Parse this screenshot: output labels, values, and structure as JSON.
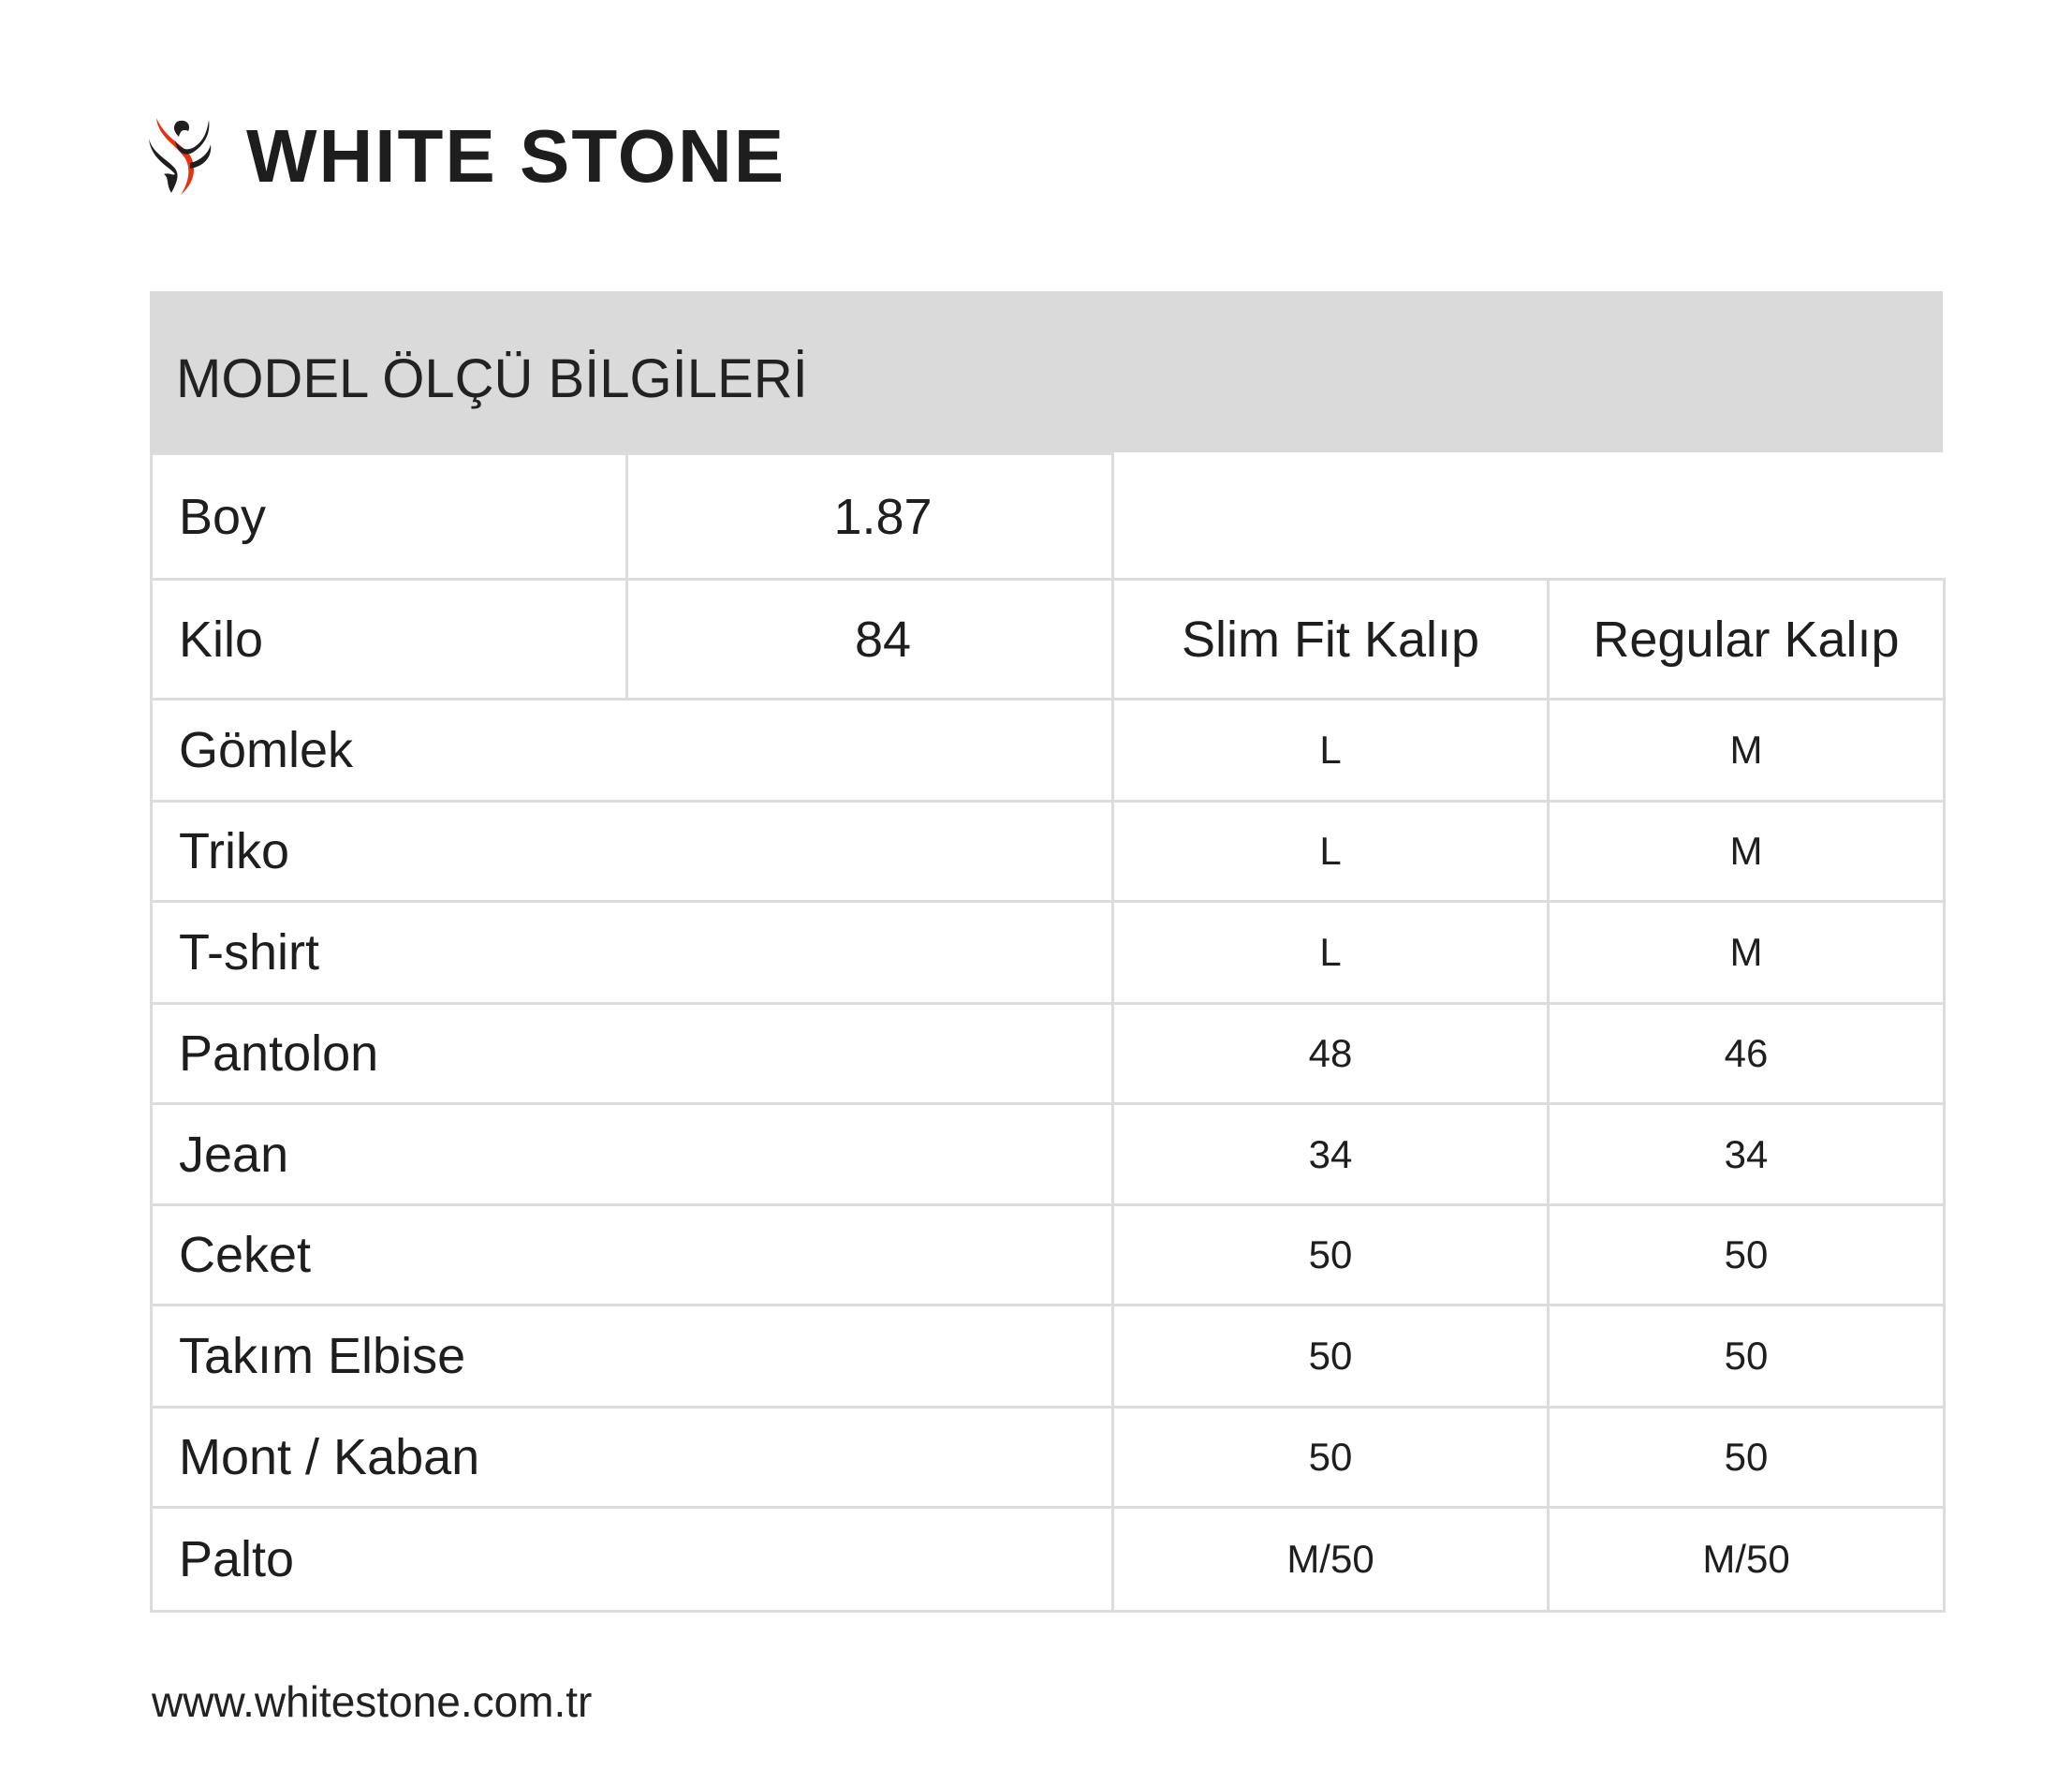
{
  "brand": {
    "name": "WHITE STONE",
    "logo_icon": "phoenix-logo-icon",
    "accent_color": "#e63312",
    "text_color": "#1e1e1e"
  },
  "title": "MODEL ÖLÇÜ BİLGİLERİ",
  "model": [
    {
      "label": "Boy",
      "value": "1.87"
    },
    {
      "label": "Kilo",
      "value": "84"
    }
  ],
  "columns": [
    "Slim Fit Kalıp",
    "Regular Kalıp"
  ],
  "rows": [
    {
      "label": "Gömlek",
      "slim": "L",
      "regular": "M"
    },
    {
      "label": "Triko",
      "slim": "L",
      "regular": "M"
    },
    {
      "label": "T-shirt",
      "slim": "L",
      "regular": "M"
    },
    {
      "label": "Pantolon",
      "slim": "48",
      "regular": "46"
    },
    {
      "label": "Jean",
      "slim": "34",
      "regular": "34"
    },
    {
      "label": "Ceket",
      "slim": "50",
      "regular": "50"
    },
    {
      "label": "Takım Elbise",
      "slim": "50",
      "regular": "50"
    },
    {
      "label": "Mont / Kaban",
      "slim": "50",
      "regular": "50"
    },
    {
      "label": "Palto",
      "slim": "M/50",
      "regular": "M/50"
    }
  ],
  "footer": {
    "website": "www.whitestone.com.tr"
  }
}
